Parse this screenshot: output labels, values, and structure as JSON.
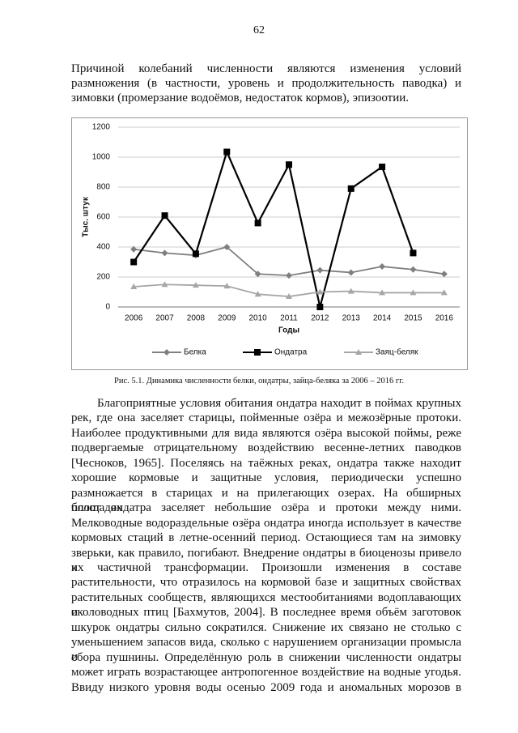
{
  "page_number": "62",
  "intro": [
    "Причиной колебаний численности являются изменения условий",
    "размножения (в частности, уровень и продолжительность паводка) и",
    "зимовки (промерзание водоёмов, недостаток кормов), эпизоотии."
  ],
  "chart_data": {
    "type": "line",
    "x_label": "Годы",
    "y_label": "Тыс. штук",
    "categories": [
      "2006",
      "2007",
      "2008",
      "2009",
      "2010",
      "2011",
      "2012",
      "2013",
      "2014",
      "2015",
      "2016"
    ],
    "series": [
      {
        "name": "Белка",
        "color": "#7f7f7f",
        "marker": "diamond",
        "values": [
          385,
          360,
          345,
          400,
          220,
          210,
          245,
          230,
          270,
          250,
          220
        ]
      },
      {
        "name": "Ондатра",
        "color": "#000000",
        "marker": "square",
        "values": [
          300,
          610,
          355,
          1035,
          560,
          950,
          0,
          790,
          935,
          360,
          null
        ]
      },
      {
        "name": "Заяц-беляк",
        "color": "#a6a6a6",
        "marker": "triangle",
        "values": [
          135,
          150,
          145,
          140,
          85,
          70,
          100,
          105,
          95,
          95,
          95
        ]
      }
    ],
    "ylim": [
      0,
      1200
    ],
    "yticks": [
      0,
      200,
      400,
      600,
      800,
      1000,
      1200
    ],
    "grid": true,
    "legend": "bottom"
  },
  "caption": "Рис. 5.1. Динамика численности белки, ондатры, зайца-беляка за 2006 – 2016 гг.",
  "body": [
    "Благоприятные условия обитания ондатра находит в поймах крупных",
    "рек, где она заселяет старицы, пойменные озёра и межозёрные протоки.",
    "Наиболее продуктивными для вида являются озёра высокой поймы, реже",
    "подвергаемые отрицательному воздействию весенне-летних паводков",
    "[Чесноков, 1965]. Поселяясь на таёжных реках, ондатра также находит",
    "хорошие кормовые и защитные условия, периодически успешно",
    "размножается в старицах и на прилегающих озерах. На обширных площадях",
    "болот ондатра заселяет небольшие озёра и протоки между ними.",
    "Мелководные водораздельные озёра ондатра иногда использует в качестве",
    "кормовых стаций в летне-осенний период. Остающиеся там на зимовку",
    "зверьки, как правило, погибают. Внедрение ондатры в биоценозы привело к",
    "их частичной трансформации. Произошли изменения в составе",
    "растительности, что отразилось на кормовой базе и защитных свойствах",
    "растительных сообществ, являющихся местообитаниями водоплавающих и",
    "околоводных птиц [Бахмутов, 2004]. В последнее время объём заготовок",
    "шкурок ондатры сильно сократился. Снижение их связано не столько с",
    "уменьшением запасов вида, сколько с нарушением организации промысла и",
    "сбора пушнины. Определённую роль в снижении численности ондатры",
    "может играть возрастающее антропогенное воздействие на водные угодья.",
    "Ввиду низкого уровня воды осенью 2009 года и аномальных морозов в"
  ]
}
